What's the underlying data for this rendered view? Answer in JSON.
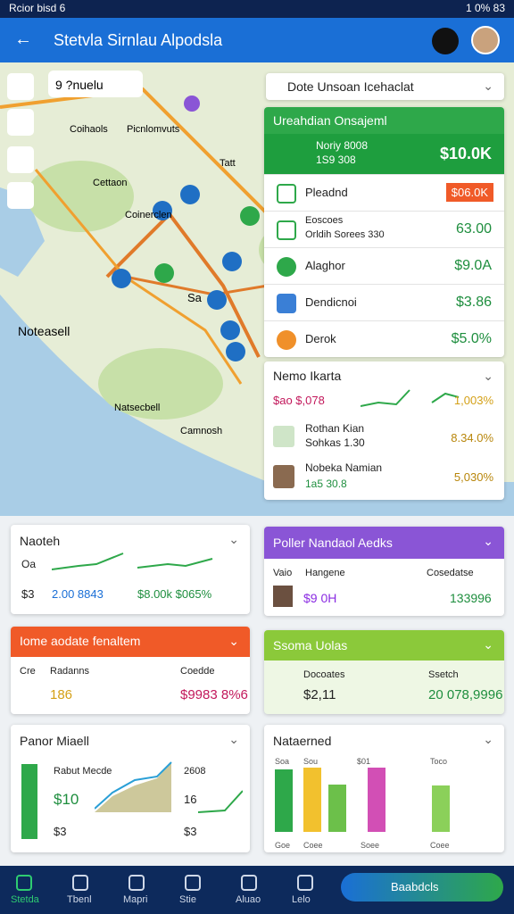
{
  "status_bar": {
    "left": "Rcior bisd 6",
    "right": "1 0% 83"
  },
  "app_bar": {
    "title": "Stetvla Sirnlau Alpodsla"
  },
  "map": {
    "search": "9 ?nuelu",
    "labels": [
      "Coihaols",
      "Picnlomvuts",
      "Cettaon",
      "Tatt",
      "Coinerclen",
      "Sa",
      "Noteasell",
      "Natsecbell",
      "Camnosh"
    ]
  },
  "filter": "Dote Unsoan Icehaclat",
  "summary": {
    "title": "Ureahdian Onsajeml",
    "label": "Noriy 8008",
    "sub": "1S9 308",
    "value": "$10.0K",
    "items": [
      {
        "name": "Pleadnd",
        "value": "$06.0K"
      },
      {
        "name": "Eoscoes",
        "sub": "Orldih Sorees 330",
        "value": "63.00"
      },
      {
        "name": "Alaghor",
        "value": "$9.0A"
      },
      {
        "name": "Dendicnoi",
        "value": "$3.86"
      },
      {
        "name": "Derok",
        "value": "$5.0%"
      }
    ]
  },
  "people": {
    "title": "Nemo Ikarta",
    "rows": [
      {
        "name": "$ao $,078",
        "value": "1,003%"
      },
      {
        "name": "Rothan Kian",
        "sub": "Sohkas 1.30",
        "value": "8.34.0%"
      },
      {
        "name": "Nobeka Namian",
        "sub": "1a5 30.8",
        "value": "5,030%"
      }
    ]
  },
  "cards": [
    {
      "title": "Naoteh",
      "texts": [
        "Oa",
        "$3",
        "2.00 8843",
        "$8.00k $065%"
      ]
    },
    {
      "title": "Poller Nandaol Aedks",
      "texts": [
        "Vaio",
        "Hangene",
        "Cosedatse",
        "$9 0H",
        "133996"
      ]
    },
    {
      "title": "Iome aodate fenaltem",
      "texts": [
        "Cre",
        "Radanns",
        "Coedde",
        "186",
        "$9983 8%6"
      ]
    },
    {
      "title": "Ssoma Uolas",
      "texts": [
        "Docoates",
        "Ssetch",
        "$2,11",
        "20 078,9996"
      ]
    },
    {
      "title": "Panor Miaell",
      "texts": [
        "Rabut Mecde",
        "$10",
        "2608",
        "16",
        "$3",
        "$3"
      ]
    },
    {
      "title": "Nataerned",
      "bars": [
        70,
        72,
        53,
        72,
        52
      ],
      "bar_colors": [
        "#2ea84a",
        "#f2c12e",
        "#6cc04a",
        "#d24fb5",
        "#8bd05a"
      ],
      "labels": [
        "Soa",
        "Sou",
        "$01",
        "Toco",
        "Goe",
        "Coee",
        "Soee",
        "Coee"
      ]
    }
  ],
  "nav": {
    "items": [
      "Stetda",
      "Tbenl",
      "Mapri",
      "Stie",
      "Aluao",
      "Lelo"
    ],
    "button": "Baabdcls"
  }
}
